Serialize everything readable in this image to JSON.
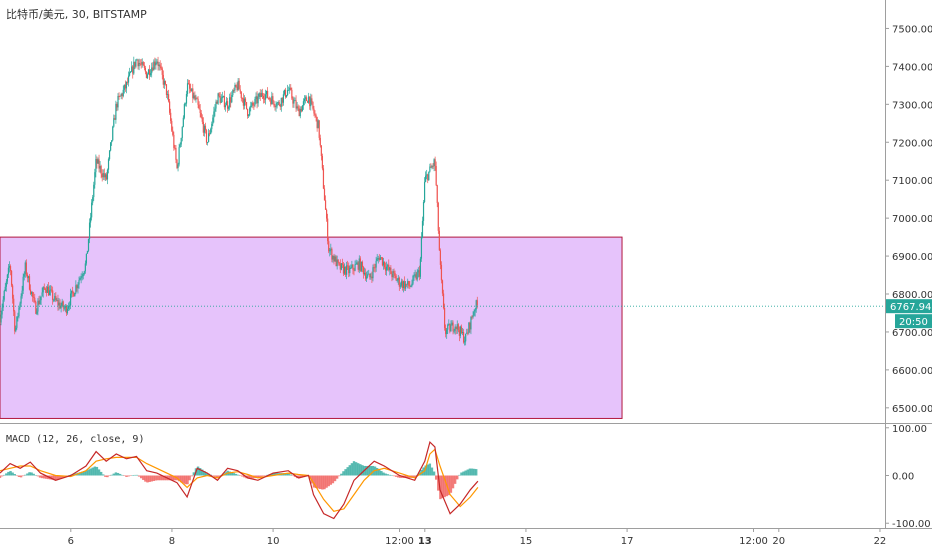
{
  "header": {
    "symbol": "比特币/美元",
    "interval": "30",
    "exchange": "BITSTAMP",
    "separator": ", "
  },
  "colors": {
    "up": "#26a69a",
    "down": "#ef5350",
    "zone_fill": "#e6c3fb",
    "zone_stroke": "#b2163d",
    "price_line": "#26a69a",
    "macd_line": "#c62828",
    "signal_line": "#ff9800",
    "hist_up": "#26a69a",
    "hist_down": "#ef5350",
    "axis_text": "#333333"
  },
  "chart_data": {
    "type": "candlestick",
    "price_axis": {
      "ticks": [
        "7500.00",
        "7400.00",
        "7300.00",
        "7200.00",
        "7100.00",
        "7000.00",
        "6900.00",
        "6800.00",
        "6700.00",
        "6600.00",
        "6500.00"
      ],
      "tick_values": [
        7500,
        7400,
        7300,
        7200,
        7100,
        7000,
        6900,
        6800,
        6700,
        6600,
        6500
      ],
      "current_price": "6767.94",
      "current_price_value": 6767.94,
      "countdown": "20:50"
    },
    "time_axis": {
      "labels": [
        "6",
        "8",
        "10",
        "12:00",
        "13",
        "15",
        "17",
        "12:00",
        "20",
        "22"
      ],
      "label_days": [
        6,
        8,
        10,
        12.5,
        13,
        15,
        17,
        19.5,
        20,
        22
      ],
      "bold": [
        false,
        false,
        false,
        false,
        true,
        false,
        false,
        false,
        false,
        false
      ]
    },
    "day_range": [
      4.6,
      22.1
    ],
    "price_range": [
      6460,
      7575
    ],
    "zone": {
      "day_start": 4.6,
      "day_end": 16.9,
      "price_top": 6950,
      "price_bottom": 6472
    },
    "price_path": [
      [
        4.6,
        6740
      ],
      [
        4.8,
        6880
      ],
      [
        4.9,
        6700
      ],
      [
        5.1,
        6870
      ],
      [
        5.3,
        6760
      ],
      [
        5.5,
        6820
      ],
      [
        5.7,
        6780
      ],
      [
        5.9,
        6760
      ],
      [
        6.1,
        6820
      ],
      [
        6.3,
        6880
      ],
      [
        6.5,
        7150
      ],
      [
        6.7,
        7100
      ],
      [
        6.9,
        7300
      ],
      [
        7.1,
        7350
      ],
      [
        7.3,
        7420
      ],
      [
        7.5,
        7380
      ],
      [
        7.7,
        7420
      ],
      [
        7.9,
        7330
      ],
      [
        8.1,
        7130
      ],
      [
        8.3,
        7350
      ],
      [
        8.5,
        7300
      ],
      [
        8.7,
        7200
      ],
      [
        8.9,
        7320
      ],
      [
        9.1,
        7300
      ],
      [
        9.3,
        7350
      ],
      [
        9.5,
        7280
      ],
      [
        9.8,
        7330
      ],
      [
        10.1,
        7300
      ],
      [
        10.3,
        7340
      ],
      [
        10.5,
        7280
      ],
      [
        10.7,
        7320
      ],
      [
        10.9,
        7240
      ],
      [
        11.1,
        6920
      ],
      [
        11.3,
        6870
      ],
      [
        11.5,
        6860
      ],
      [
        11.7,
        6880
      ],
      [
        11.9,
        6840
      ],
      [
        12.1,
        6900
      ],
      [
        12.3,
        6860
      ],
      [
        12.5,
        6830
      ],
      [
        12.7,
        6820
      ],
      [
        12.9,
        6860
      ],
      [
        13.0,
        7100
      ],
      [
        13.2,
        7150
      ],
      [
        13.3,
        6880
      ],
      [
        13.4,
        6700
      ],
      [
        13.6,
        6720
      ],
      [
        13.8,
        6680
      ],
      [
        14.0,
        6770
      ],
      [
        14.05,
        6768
      ]
    ],
    "macd": {
      "label": "MACD (12, 26, close, 9)",
      "axis_ticks": [
        "100.00",
        "0.00",
        "-100.00"
      ],
      "axis_values": [
        100,
        0,
        -100
      ],
      "range": [
        -110,
        110
      ],
      "macd_path": [
        [
          4.6,
          5
        ],
        [
          4.8,
          25
        ],
        [
          5.0,
          15
        ],
        [
          5.2,
          28
        ],
        [
          5.4,
          5
        ],
        [
          5.7,
          -10
        ],
        [
          6.0,
          0
        ],
        [
          6.3,
          20
        ],
        [
          6.5,
          50
        ],
        [
          6.7,
          30
        ],
        [
          6.9,
          45
        ],
        [
          7.1,
          35
        ],
        [
          7.3,
          40
        ],
        [
          7.5,
          10
        ],
        [
          7.7,
          5
        ],
        [
          8.1,
          -15
        ],
        [
          8.3,
          -45
        ],
        [
          8.5,
          15
        ],
        [
          8.7,
          5
        ],
        [
          8.9,
          -10
        ],
        [
          9.1,
          15
        ],
        [
          9.3,
          10
        ],
        [
          9.5,
          -5
        ],
        [
          9.7,
          -10
        ],
        [
          10.0,
          5
        ],
        [
          10.3,
          10
        ],
        [
          10.5,
          -5
        ],
        [
          10.7,
          0
        ],
        [
          10.8,
          -40
        ],
        [
          11.0,
          -80
        ],
        [
          11.2,
          -90
        ],
        [
          11.4,
          -60
        ],
        [
          11.6,
          -10
        ],
        [
          11.8,
          10
        ],
        [
          12.0,
          30
        ],
        [
          12.2,
          20
        ],
        [
          12.5,
          0
        ],
        [
          12.8,
          -10
        ],
        [
          13.0,
          30
        ],
        [
          13.1,
          70
        ],
        [
          13.2,
          60
        ],
        [
          13.3,
          -30
        ],
        [
          13.5,
          -80
        ],
        [
          13.7,
          -60
        ],
        [
          13.9,
          -30
        ],
        [
          14.05,
          -12
        ]
      ],
      "signal_path": [
        [
          4.6,
          10
        ],
        [
          4.8,
          15
        ],
        [
          5.0,
          20
        ],
        [
          5.2,
          20
        ],
        [
          5.4,
          10
        ],
        [
          5.7,
          0
        ],
        [
          6.0,
          -2
        ],
        [
          6.3,
          10
        ],
        [
          6.5,
          30
        ],
        [
          6.7,
          35
        ],
        [
          6.9,
          38
        ],
        [
          7.1,
          38
        ],
        [
          7.3,
          38
        ],
        [
          7.5,
          25
        ],
        [
          7.7,
          15
        ],
        [
          8.1,
          -5
        ],
        [
          8.3,
          -25
        ],
        [
          8.5,
          -5
        ],
        [
          8.7,
          0
        ],
        [
          8.9,
          -5
        ],
        [
          9.1,
          5
        ],
        [
          9.3,
          8
        ],
        [
          9.5,
          2
        ],
        [
          9.7,
          -5
        ],
        [
          10.0,
          0
        ],
        [
          10.3,
          5
        ],
        [
          10.5,
          2
        ],
        [
          10.7,
          0
        ],
        [
          10.8,
          -15
        ],
        [
          11.0,
          -50
        ],
        [
          11.2,
          -75
        ],
        [
          11.4,
          -70
        ],
        [
          11.6,
          -40
        ],
        [
          11.8,
          -10
        ],
        [
          12.0,
          10
        ],
        [
          12.2,
          15
        ],
        [
          12.5,
          5
        ],
        [
          12.8,
          -5
        ],
        [
          13.0,
          10
        ],
        [
          13.1,
          45
        ],
        [
          13.2,
          55
        ],
        [
          13.3,
          20
        ],
        [
          13.5,
          -40
        ],
        [
          13.7,
          -65
        ],
        [
          13.9,
          -45
        ],
        [
          14.05,
          -25
        ]
      ]
    }
  }
}
